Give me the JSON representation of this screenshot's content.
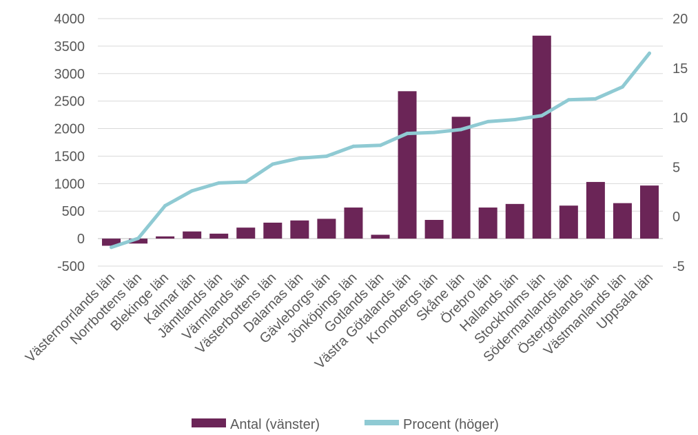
{
  "chart_data": {
    "type": "bar",
    "categories": [
      "Västernorrlands län",
      "Norrbottens län",
      "Blekinge län",
      "Kalmar län",
      "Jämtlands län",
      "Värmlands län",
      "Västerbottens län",
      "Dalarnas län",
      "Gävleborgs län",
      "Jönköpings län",
      "Gotlands län",
      "Västra Götalands län",
      "Kronobergs län",
      "Skåne län",
      "Örebro län",
      "Hallands län",
      "Stockholms län",
      "Södermanlands län",
      "Östergötlands län",
      "Västmanlands län",
      "Uppsala län"
    ],
    "series": [
      {
        "name": "Antal (vänster)",
        "type": "bar",
        "axis": "left",
        "color": "#6B2557",
        "values": [
          -130,
          -90,
          40,
          130,
          90,
          200,
          290,
          330,
          360,
          565,
          70,
          2680,
          340,
          2215,
          565,
          630,
          3690,
          600,
          1030,
          645,
          965
        ]
      },
      {
        "name": "Procent (höger)",
        "type": "line",
        "axis": "right",
        "color": "#8FCAD3",
        "values": [
          -3.1,
          -2.2,
          1.1,
          2.6,
          3.4,
          3.5,
          5.3,
          5.9,
          6.1,
          7.1,
          7.2,
          8.4,
          8.5,
          8.8,
          9.6,
          9.8,
          10.2,
          11.8,
          11.9,
          13.1,
          16.5
        ]
      }
    ],
    "y_left": {
      "ylim": [
        -500,
        4000
      ],
      "ticks": [
        "-500",
        "0",
        "500",
        "1000",
        "1500",
        "2000",
        "2500",
        "3000",
        "3500",
        "4000"
      ]
    },
    "y_right": {
      "ylim": [
        -5,
        20
      ],
      "ticks": [
        "-5",
        "0",
        "5",
        "10",
        "15",
        "20"
      ]
    },
    "grid": true,
    "legend": "bottom",
    "title": "",
    "xlabel": "",
    "ylabel": ""
  }
}
